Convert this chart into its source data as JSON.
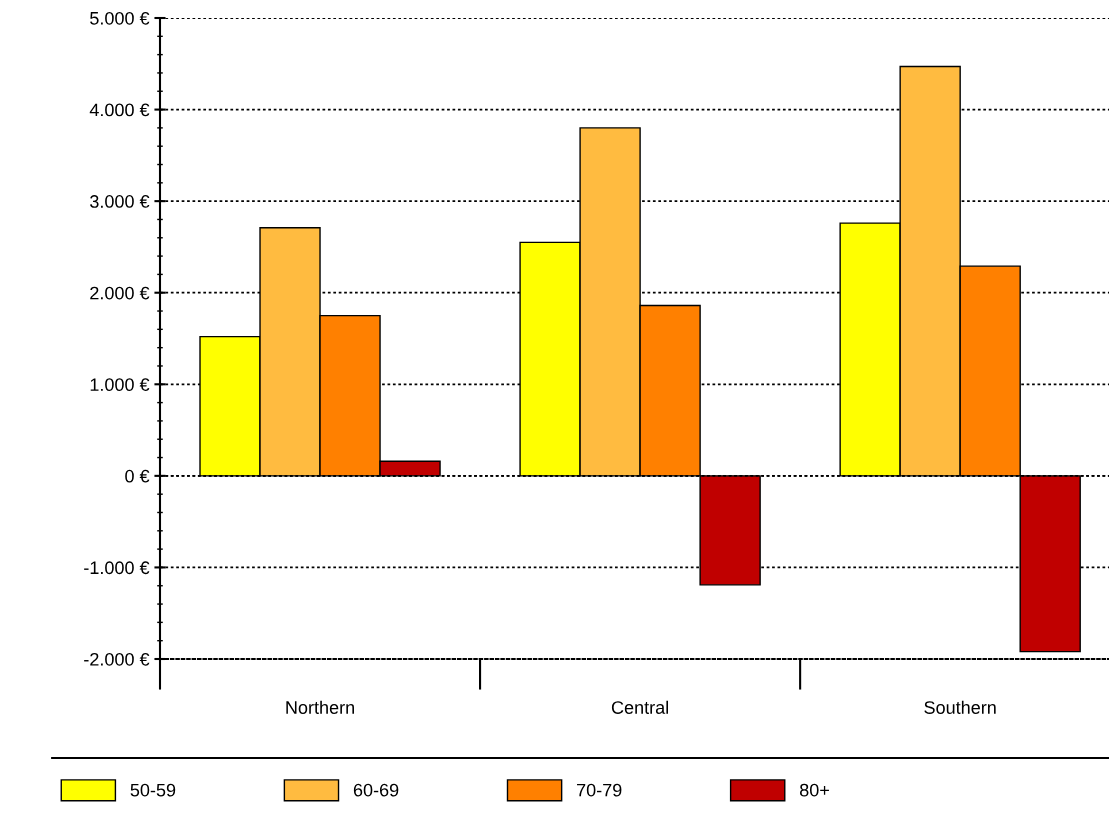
{
  "chart_data": {
    "type": "bar",
    "categories": [
      "Northern",
      "Central",
      "Southern"
    ],
    "series": [
      {
        "name": "50-59",
        "color": "#ffff00",
        "values": [
          1520,
          2550,
          2760
        ]
      },
      {
        "name": "60-69",
        "color": "#ffbb40",
        "values": [
          2710,
          3800,
          4470
        ]
      },
      {
        "name": "70-79",
        "color": "#ff8000",
        "values": [
          1750,
          1860,
          2290
        ]
      },
      {
        "name": "80+",
        "color": "#c00000",
        "values": [
          160,
          -1190,
          -1920
        ]
      }
    ],
    "ylim": [
      -2000,
      5000
    ],
    "yticks": [
      {
        "value": -2000,
        "label": "-2.000 €"
      },
      {
        "value": -1000,
        "label": "-1.000 €"
      },
      {
        "value": 0,
        "label": "0 €"
      },
      {
        "value": 1000,
        "label": "1.000 €"
      },
      {
        "value": 2000,
        "label": "2.000 €"
      },
      {
        "value": 3000,
        "label": "3.000 €"
      },
      {
        "value": 4000,
        "label": "4.000 €"
      },
      {
        "value": 5000,
        "label": "5.000 €"
      }
    ],
    "grid": "y",
    "legend": "bottom"
  }
}
